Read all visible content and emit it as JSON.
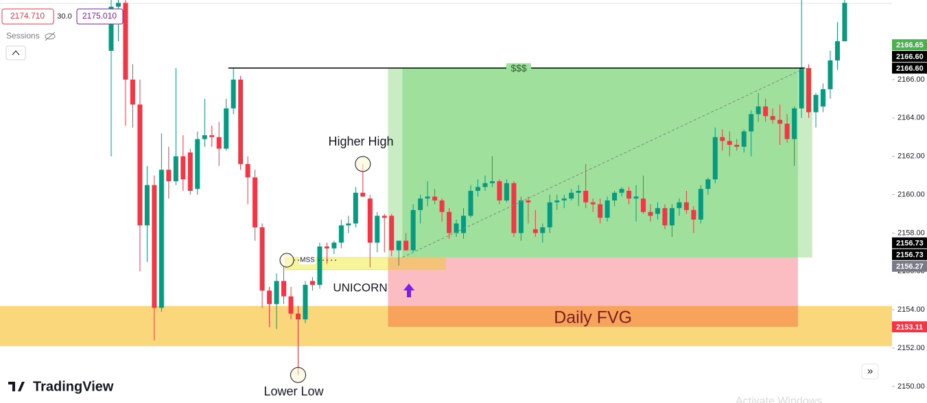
{
  "header": {
    "bid": "2174.710",
    "spread": "30.0",
    "ask": "2175.010",
    "sessions": "Sessions"
  },
  "brand": "TradingView",
  "watermark": "Activate Windows",
  "chart_data": {
    "type": "candlestick",
    "ylim": [
      2149.14,
      2170.15
    ],
    "yticks": [
      {
        "value": 2150,
        "label": "2150.00"
      },
      {
        "value": 2152,
        "label": "2152.00"
      },
      {
        "value": 2154,
        "label": "2154.00"
      },
      {
        "value": 2156,
        "label": "2156.00"
      },
      {
        "value": 2158,
        "label": "2158.00"
      },
      {
        "value": 2160,
        "label": "2160.00"
      },
      {
        "value": 2162,
        "label": "2162.00"
      },
      {
        "value": 2164,
        "label": "2164.00"
      },
      {
        "value": 2166,
        "label": "2166.00"
      }
    ],
    "up_color": "#089981",
    "down_color": "#f23645",
    "candles": [
      [
        2167.5,
        2170.2,
        2162.0,
        2169.8
      ],
      [
        2169.8,
        2170.2,
        2168.0,
        2170.0
      ],
      [
        2170.0,
        2170.2,
        2163.6,
        2166.0
      ],
      [
        2166.0,
        2166.8,
        2163.5,
        2164.7
      ],
      [
        2164.7,
        2166.0,
        2156.0,
        2158.4
      ],
      [
        2158.4,
        2161.5,
        2156.5,
        2160.5
      ],
      [
        2160.5,
        2161.0,
        2152.4,
        2154.1
      ],
      [
        2154.1,
        2163.2,
        2153.9,
        2161.3
      ],
      [
        2161.3,
        2162.5,
        2159.8,
        2160.7
      ],
      [
        2160.7,
        2166.6,
        2160.5,
        2162.0
      ],
      [
        2162.0,
        2163.1,
        2160.2,
        2160.8
      ],
      [
        2162.2,
        2162.4,
        2160.0,
        2160.2
      ],
      [
        2160.3,
        2163.3,
        2160.0,
        2162.9
      ],
      [
        2162.9,
        2165.0,
        2162.5,
        2163.1
      ],
      [
        2163.1,
        2163.6,
        2162.5,
        2163.0
      ],
      [
        2163.0,
        2163.8,
        2161.5,
        2162.4
      ],
      [
        2162.4,
        2165.0,
        2162.3,
        2164.5
      ],
      [
        2164.5,
        2166.6,
        2164.2,
        2166.0
      ],
      [
        2166.0,
        2166.2,
        2161.3,
        2161.6
      ],
      [
        2161.6,
        2162.0,
        2159.5,
        2160.9
      ],
      [
        2160.9,
        2161.3,
        2157.6,
        2158.3
      ],
      [
        2158.3,
        2158.5,
        2154.1,
        2155.0
      ],
      [
        2155.0,
        2155.2,
        2153.1,
        2154.3
      ],
      [
        2154.3,
        2155.9,
        2153.0,
        2155.5
      ],
      [
        2155.5,
        2156.3,
        2154.3,
        2154.7
      ],
      [
        2154.7,
        2155.2,
        2153.5,
        2153.8
      ],
      [
        2153.8,
        2154.2,
        2150.6,
        2153.5
      ],
      [
        2153.5,
        2155.5,
        2153.3,
        2155.3
      ],
      [
        2155.5,
        2155.7,
        2155.0,
        2155.3
      ],
      [
        2155.3,
        2157.5,
        2155.1,
        2157.3
      ],
      [
        2157.3,
        2157.5,
        2156.4,
        2157.2
      ],
      [
        2157.2,
        2157.6,
        2156.9,
        2157.5
      ],
      [
        2157.5,
        2158.7,
        2157.2,
        2158.4
      ],
      [
        2158.4,
        2158.9,
        2158.0,
        2158.5
      ],
      [
        2158.5,
        2160.4,
        2158.3,
        2160.1
      ],
      [
        2160.1,
        2161.6,
        2159.9,
        2159.9
      ],
      [
        2159.8,
        2160.0,
        2156.2,
        2157.5
      ],
      [
        2157.5,
        2159.1,
        2157.0,
        2158.9
      ],
      [
        2158.9,
        2159.0,
        2157.0,
        2158.8
      ],
      [
        2158.9,
        2159.0,
        2156.8,
        2157.1
      ],
      [
        2157.1,
        2157.6,
        2156.3,
        2157.6
      ],
      [
        2157.6,
        2158.0,
        2157.1,
        2157.1
      ],
      [
        2157.1,
        2159.5,
        2157.0,
        2159.2
      ],
      [
        2159.2,
        2160.0,
        2158.5,
        2159.8
      ],
      [
        2159.8,
        2160.7,
        2159.4,
        2159.9
      ],
      [
        2159.9,
        2160.3,
        2159.5,
        2159.7
      ],
      [
        2159.7,
        2159.8,
        2158.6,
        2159.1
      ],
      [
        2159.1,
        2159.3,
        2157.7,
        2158.0
      ],
      [
        2158.0,
        2158.7,
        2157.8,
        2158.5
      ],
      [
        2158.0,
        2159.3,
        2157.7,
        2158.9
      ],
      [
        2158.9,
        2160.5,
        2158.8,
        2160.2
      ],
      [
        2160.2,
        2160.8,
        2159.9,
        2160.4
      ],
      [
        2160.4,
        2161.0,
        2160.2,
        2160.6
      ],
      [
        2160.6,
        2162.0,
        2160.4,
        2160.7
      ],
      [
        2160.7,
        2160.8,
        2159.5,
        2159.7
      ],
      [
        2159.7,
        2160.8,
        2159.6,
        2160.6
      ],
      [
        2160.6,
        2160.7,
        2157.8,
        2158.0
      ],
      [
        2158.0,
        2159.9,
        2157.6,
        2159.7
      ],
      [
        2159.7,
        2159.9,
        2158.5,
        2159.6
      ],
      [
        2158.2,
        2159.2,
        2157.8,
        2158.0
      ],
      [
        2158.0,
        2158.5,
        2157.5,
        2158.3
      ],
      [
        2158.3,
        2160.0,
        2158.0,
        2159.6
      ],
      [
        2159.6,
        2160.0,
        2159.2,
        2159.7
      ],
      [
        2159.7,
        2160.0,
        2159.3,
        2159.8
      ],
      [
        2159.8,
        2160.3,
        2159.7,
        2160.1
      ],
      [
        2160.1,
        2160.5,
        2159.4,
        2160.2
      ],
      [
        2160.2,
        2161.6,
        2159.3,
        2159.6
      ],
      [
        2159.6,
        2159.8,
        2159.1,
        2159.5
      ],
      [
        2159.5,
        2159.8,
        2158.5,
        2158.8
      ],
      [
        2158.8,
        2159.9,
        2158.6,
        2159.7
      ],
      [
        2159.7,
        2160.2,
        2159.4,
        2160.1
      ],
      [
        2160.1,
        2160.4,
        2159.9,
        2160.3
      ],
      [
        2160.2,
        2160.4,
        2159.5,
        2159.8
      ],
      [
        2159.8,
        2160.5,
        2158.6,
        2159.9
      ],
      [
        2159.8,
        2161.0,
        2159.0,
        2159.1
      ],
      [
        2159.1,
        2159.5,
        2158.6,
        2158.9
      ],
      [
        2159.0,
        2159.6,
        2158.7,
        2159.3
      ],
      [
        2159.3,
        2159.5,
        2158.2,
        2158.4
      ],
      [
        2158.4,
        2159.5,
        2157.8,
        2159.3
      ],
      [
        2159.3,
        2159.8,
        2158.9,
        2159.6
      ],
      [
        2159.6,
        2160.2,
        2159.0,
        2159.2
      ],
      [
        2159.2,
        2159.4,
        2158.0,
        2158.7
      ],
      [
        2158.7,
        2160.5,
        2158.5,
        2160.3
      ],
      [
        2160.3,
        2160.9,
        2160.0,
        2160.8
      ],
      [
        2160.8,
        2163.5,
        2160.6,
        2163.0
      ],
      [
        2163.0,
        2163.4,
        2162.3,
        2162.8
      ],
      [
        2162.8,
        2163.3,
        2162.0,
        2162.6
      ],
      [
        2162.6,
        2162.9,
        2162.3,
        2162.5
      ],
      [
        2162.5,
        2163.4,
        2162.2,
        2163.3
      ],
      [
        2163.3,
        2164.4,
        2162.0,
        2164.2
      ],
      [
        2164.2,
        2165.3,
        2163.8,
        2164.6
      ],
      [
        2164.6,
        2165.0,
        2163.8,
        2164.1
      ],
      [
        2164.1,
        2164.5,
        2163.7,
        2163.9
      ],
      [
        2163.9,
        2164.7,
        2162.6,
        2163.7
      ],
      [
        2163.7,
        2164.2,
        2162.7,
        2162.9
      ],
      [
        2162.9,
        2164.6,
        2161.5,
        2164.5
      ],
      [
        2164.5,
        2170.2,
        2164.0,
        2166.6
      ],
      [
        2166.6,
        2166.8,
        2164.0,
        2164.3
      ],
      [
        2164.3,
        2165.3,
        2163.5,
        2165.2
      ],
      [
        2164.6,
        2165.8,
        2164.3,
        2165.5
      ],
      [
        2165.5,
        2167.5,
        2165.0,
        2167.0
      ],
      [
        2167.0,
        2169.0,
        2166.5,
        2168.0
      ],
      [
        2168.0,
        2170.2,
        2168.0,
        2170.0
      ]
    ],
    "price_tags": [
      {
        "value": 2166.65,
        "color": "#4caf50"
      },
      {
        "value": {
          "value": 2166.6,
          "label": "2166.60"
        },
        "color": "#000000"
      },
      {
        "value": {
          "value": 2166.6,
          "label": "2166.60"
        },
        "color": "#000000"
      },
      {
        "value": 2156.73,
        "color": "#000000"
      },
      {
        "value": 2156.73,
        "color": "#000000"
      },
      {
        "value": 2156.27,
        "color": "#787b86"
      },
      {
        "value": 2153.11,
        "color": "#f23645"
      }
    ],
    "htf_band": {
      "bottom": 2152.1,
      "top": 2154.2,
      "color": "#f9d77a"
    },
    "fvg": {
      "label": "Daily FVG",
      "bottom": 2153.11,
      "top": 2156.73,
      "color": "#fbbcc2",
      "overlap_color": "#f7a35c"
    },
    "unicorn": {
      "label": "UNICORN",
      "bottom": 2156.1,
      "top": 2156.73,
      "color": "#f7f59a"
    },
    "target": {
      "label": "$$$",
      "value": 2166.6
    },
    "position": {
      "entry": 2156.73,
      "target": 2166.6,
      "color": "#9ee09c"
    },
    "annotations": {
      "higher_high": "Higher High",
      "lower_low": "Lower Low",
      "mss": "MSS"
    }
  }
}
